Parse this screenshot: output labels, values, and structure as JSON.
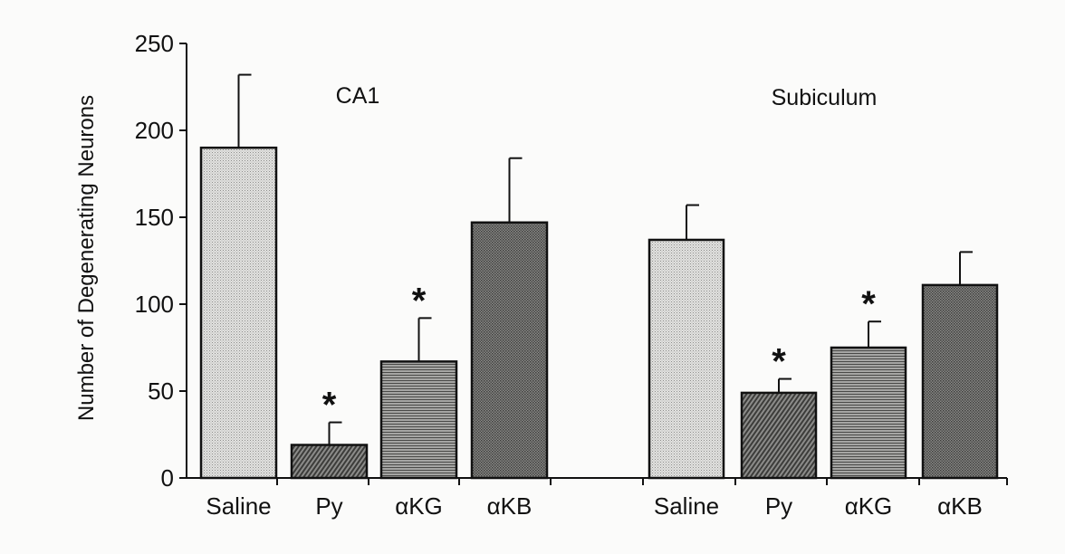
{
  "chart_data": {
    "type": "bar",
    "ylabel": "Number of Degenerating Neurons",
    "ylim": [
      0,
      250
    ],
    "yticks": [
      0,
      50,
      100,
      150,
      200,
      250
    ],
    "grid": false,
    "groups": [
      {
        "name": "CA1",
        "categories": [
          "Saline",
          "Py",
          "αKG",
          "αKB"
        ],
        "values": [
          190,
          19,
          67,
          147
        ],
        "errors": [
          42,
          13,
          25,
          37
        ],
        "significant": [
          false,
          true,
          true,
          false
        ]
      },
      {
        "name": "Subiculum",
        "categories": [
          "Saline",
          "Py",
          "αKG",
          "αKB"
        ],
        "values": [
          137,
          49,
          75,
          111
        ],
        "errors": [
          20,
          8,
          15,
          19
        ],
        "significant": [
          false,
          true,
          true,
          false
        ]
      }
    ],
    "significance_marker": "*"
  },
  "colors": {
    "axis": "#111111",
    "bar_edge": "#111111",
    "saline_fill": "#d2d2d0",
    "py_fill": "#5e5e5c",
    "akg_fill": "#8a8a88",
    "akb_fill": "#6e6e6c"
  }
}
